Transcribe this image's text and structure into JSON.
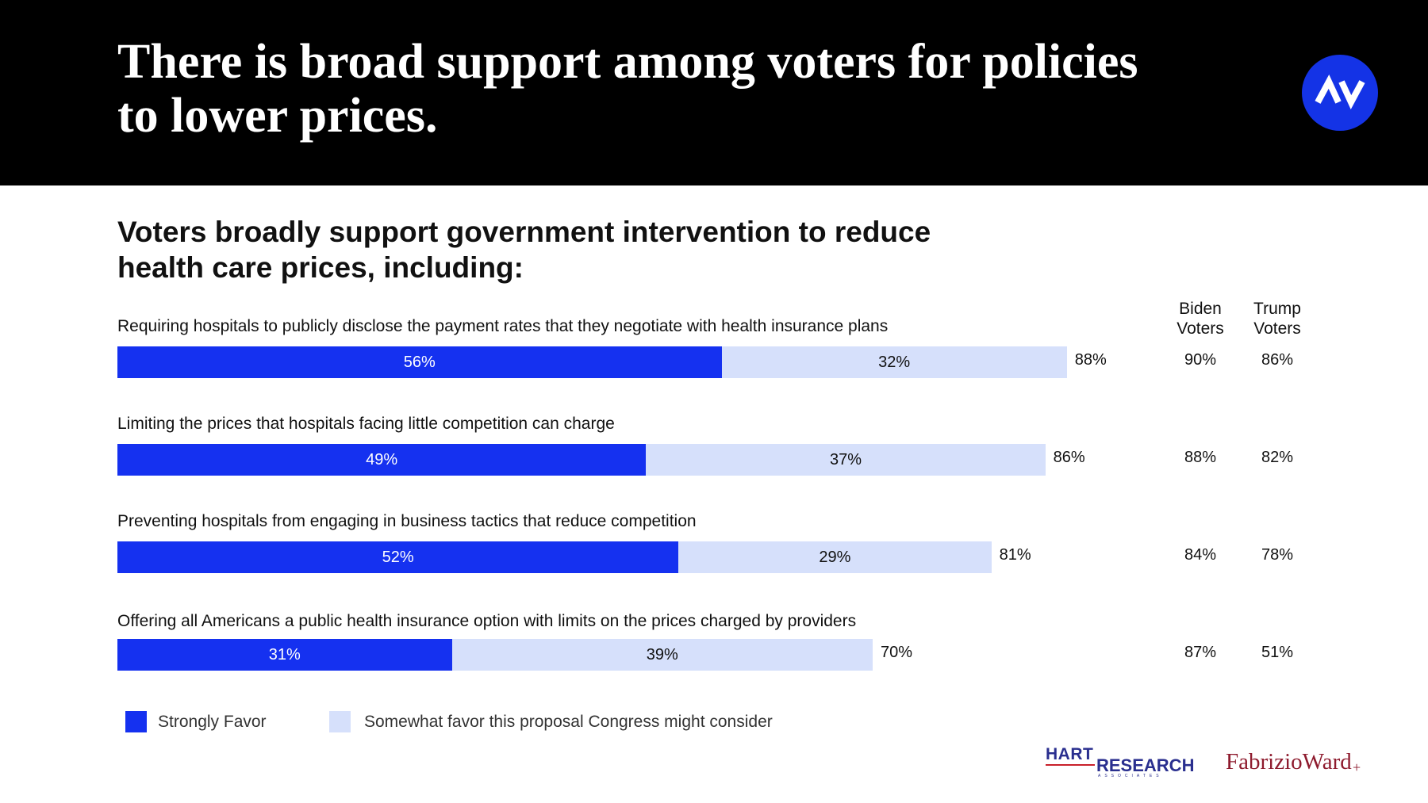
{
  "header": {
    "title": "There is broad support among voters for policies to lower prices."
  },
  "logo": {
    "label": "AV"
  },
  "subtitle": "Voters broadly support government intervention to reduce health care prices, including:",
  "columns": {
    "biden": "Biden\nVoters",
    "trump": "Trump\nVoters"
  },
  "colors": {
    "strong": "#1531f0",
    "somewhat": "#d6e0fb",
    "banner": "#000000",
    "logo": "#1433e6"
  },
  "chart_data": {
    "type": "bar",
    "orientation": "horizontal",
    "stacked": true,
    "categories": [
      "Requiring hospitals to publicly disclose the payment rates that they negotiate with health insurance plans",
      "Limiting the prices that hospitals facing little competition can charge",
      "Preventing hospitals from engaging in business tactics that reduce competition",
      "Offering all Americans a public health insurance option with limits on the prices charged by providers"
    ],
    "series": [
      {
        "name": "Strongly Favor",
        "values": [
          56,
          49,
          52,
          31
        ],
        "labels": [
          "56%",
          "49%",
          "52%",
          "31%"
        ]
      },
      {
        "name": "Somewhat favor this proposal Congress might consider",
        "values": [
          32,
          37,
          29,
          39
        ],
        "labels": [
          "32%",
          "37%",
          "29%",
          "39%"
        ]
      }
    ],
    "totals": [
      "88%",
      "86%",
      "81%",
      "70%"
    ],
    "biden_voters": [
      "90%",
      "88%",
      "84%",
      "87%"
    ],
    "trump_voters": [
      "86%",
      "82%",
      "78%",
      "51%"
    ],
    "xlim": [
      0,
      100
    ],
    "legend_position": "bottom-left"
  },
  "legend": {
    "strong": "Strongly Favor",
    "somewhat": "Somewhat favor this proposal Congress might consider"
  },
  "sources": {
    "hart_top": "HART",
    "hart_main": "RESEARCH",
    "hart_sub": "ASSOCIATES",
    "fabrizio": "FabrizioWard",
    "fabrizio_plus": "+"
  }
}
